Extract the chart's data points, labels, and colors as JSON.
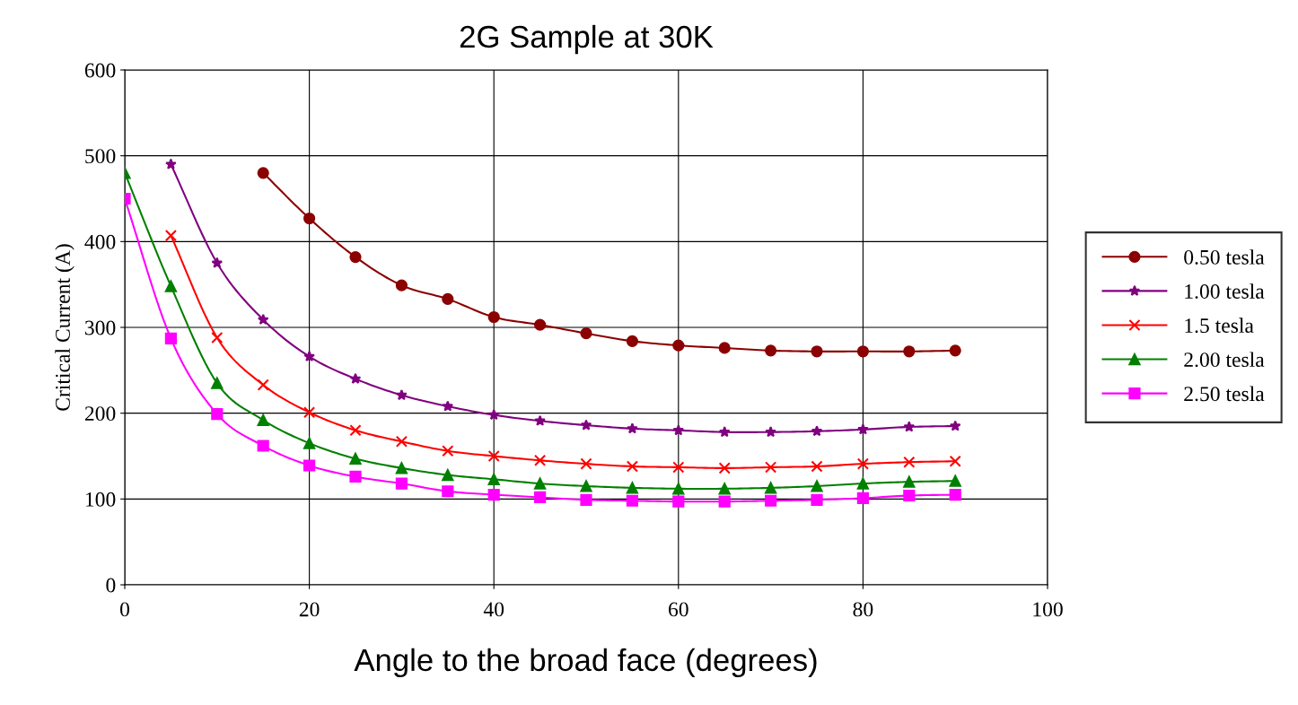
{
  "chart_data": {
    "type": "line",
    "title": "2G Sample at 30K",
    "xlabel": "Angle to the broad face (degrees)",
    "ylabel": "Critical Current (A)",
    "xlim": [
      0,
      100
    ],
    "xticks": [
      0,
      20,
      40,
      60,
      80,
      100
    ],
    "ylim": [
      0,
      600
    ],
    "yticks": [
      0,
      100,
      200,
      300,
      400,
      500,
      600
    ],
    "grid": true,
    "legend": "right",
    "line_style": "solid",
    "series": [
      {
        "name": "0.50 tesla",
        "color": "#8b0000",
        "marker": "circle",
        "x": [
          15,
          20,
          25,
          30,
          35,
          40,
          45,
          50,
          55,
          60,
          65,
          70,
          75,
          80,
          85,
          90
        ],
        "values": [
          480,
          427,
          382,
          349,
          333,
          312,
          303,
          293,
          284,
          279,
          276,
          273,
          272,
          272,
          272,
          273
        ]
      },
      {
        "name": "1.00 tesla",
        "color": "#800080",
        "marker": "star",
        "x": [
          5,
          10,
          15,
          20,
          25,
          30,
          35,
          40,
          45,
          50,
          55,
          60,
          65,
          70,
          75,
          80,
          85,
          90
        ],
        "values": [
          490,
          375,
          309,
          266,
          240,
          221,
          208,
          198,
          191,
          186,
          182,
          180,
          178,
          178,
          179,
          181,
          184,
          185
        ]
      },
      {
        "name": "1.5 tesla",
        "color": "#ff0000",
        "marker": "cross",
        "x": [
          5,
          10,
          15,
          20,
          25,
          30,
          35,
          40,
          45,
          50,
          55,
          60,
          65,
          70,
          75,
          80,
          85,
          90
        ],
        "values": [
          407,
          288,
          233,
          201,
          180,
          167,
          156,
          150,
          145,
          141,
          138,
          137,
          136,
          137,
          138,
          141,
          143,
          144
        ]
      },
      {
        "name": "2.00 tesla",
        "color": "#008000",
        "marker": "triangle",
        "x": [
          0,
          5,
          10,
          15,
          20,
          25,
          30,
          35,
          40,
          45,
          50,
          55,
          60,
          65,
          70,
          75,
          80,
          85,
          90
        ],
        "values": [
          480,
          348,
          235,
          192,
          165,
          147,
          136,
          128,
          123,
          118,
          115,
          113,
          112,
          112,
          113,
          115,
          118,
          120,
          121
        ]
      },
      {
        "name": "2.50 tesla",
        "color": "#ff00ff",
        "marker": "square",
        "x": [
          0,
          5,
          10,
          15,
          20,
          25,
          30,
          35,
          40,
          45,
          50,
          55,
          60,
          65,
          70,
          75,
          80,
          85,
          90
        ],
        "values": [
          450,
          287,
          199,
          162,
          139,
          126,
          118,
          109,
          105,
          102,
          99,
          98,
          97,
          97,
          98,
          99,
          101,
          104,
          105
        ]
      }
    ]
  }
}
